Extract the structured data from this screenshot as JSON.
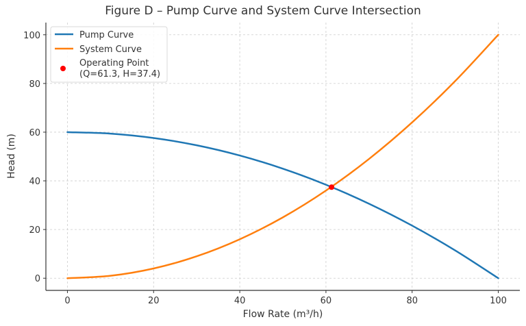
{
  "chart_data": {
    "type": "line",
    "title": "Figure D – Pump Curve and System Curve Intersection",
    "xlabel": "Flow Rate (m³/h)",
    "ylabel": "Head (m)",
    "xlim": [
      -5,
      105
    ],
    "ylim": [
      -5,
      105
    ],
    "xticks": [
      0,
      20,
      40,
      60,
      80,
      100
    ],
    "yticks": [
      0,
      20,
      40,
      60,
      80,
      100
    ],
    "grid": true,
    "legend_position": "top-left",
    "series": [
      {
        "name": "Pump Curve",
        "color": "#1f77b4",
        "x": [
          0,
          10,
          20,
          30,
          40,
          50,
          60,
          70,
          80,
          90,
          100
        ],
        "y": [
          60,
          59.4,
          57.6,
          54.6,
          50.4,
          45,
          38.4,
          30.6,
          21.6,
          11.4,
          0
        ]
      },
      {
        "name": "System Curve",
        "color": "#ff7f0e",
        "x": [
          0,
          10,
          20,
          30,
          40,
          50,
          60,
          70,
          80,
          90,
          100
        ],
        "y": [
          0,
          1,
          4,
          9,
          16,
          25,
          36,
          49,
          64,
          81,
          100
        ]
      }
    ],
    "points": [
      {
        "name": "Operating Point",
        "legend_label_line1": "Operating Point",
        "legend_label_line2": "(Q=61.3, H=37.4)",
        "x": 61.3,
        "y": 37.4,
        "color": "#ff0000"
      }
    ]
  }
}
